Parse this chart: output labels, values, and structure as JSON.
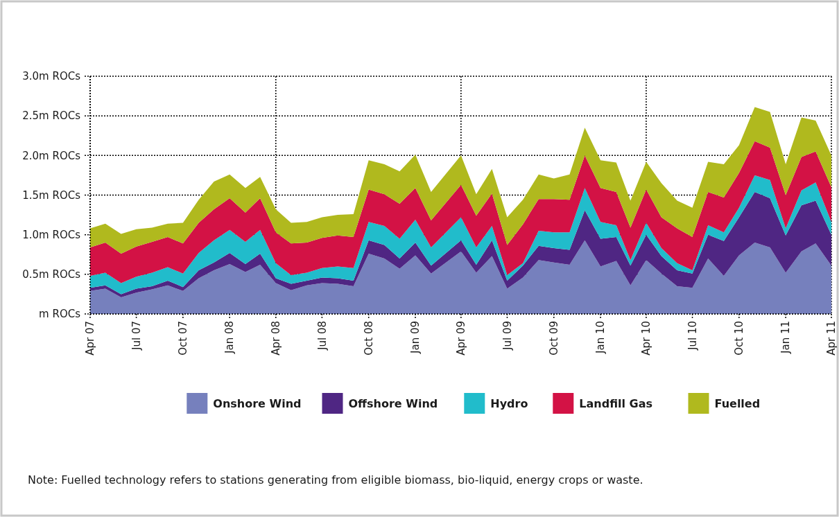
{
  "chart_data": {
    "type": "area",
    "stacked": true,
    "x": [
      "2007-04",
      "2007-05",
      "2007-06",
      "2007-07",
      "2007-08",
      "2007-09",
      "2007-10",
      "2007-11",
      "2007-12",
      "2008-01",
      "2008-02",
      "2008-03",
      "2008-04",
      "2008-05",
      "2008-06",
      "2008-07",
      "2008-08",
      "2008-09",
      "2008-10",
      "2008-11",
      "2008-12",
      "2009-01",
      "2009-02",
      "2009-04",
      "2009-05",
      "2009-06",
      "2009-07",
      "2009-08",
      "2009-09",
      "2009-10",
      "2009-11",
      "2009-12",
      "2010-01",
      "2010-02",
      "2010-03",
      "2010-04",
      "2010-05",
      "2010-06",
      "2010-07",
      "2010-08",
      "2010-09",
      "2010-10",
      "2010-11",
      "2010-12",
      "2011-01",
      "2011-02",
      "2011-03",
      "2011-04"
    ],
    "series": [
      {
        "name": "Onshore Wind",
        "color": "#7680bd",
        "values": [
          0.29,
          0.32,
          0.21,
          0.27,
          0.31,
          0.36,
          0.29,
          0.45,
          0.55,
          0.63,
          0.53,
          0.62,
          0.39,
          0.3,
          0.36,
          0.39,
          0.38,
          0.35,
          0.76,
          0.7,
          0.57,
          0.74,
          0.51,
          0.79,
          0.52,
          0.73,
          0.32,
          0.46,
          0.68,
          0.65,
          0.62,
          0.93,
          0.6,
          0.67,
          0.36,
          0.68,
          0.51,
          0.35,
          0.33,
          0.7,
          0.48,
          0.74,
          0.9,
          0.84,
          0.52,
          0.79,
          0.89,
          0.61
        ]
      },
      {
        "name": "Offshore Wind",
        "color": "#4f2683",
        "values": [
          0.04,
          0.04,
          0.04,
          0.05,
          0.04,
          0.06,
          0.05,
          0.1,
          0.1,
          0.14,
          0.1,
          0.14,
          0.06,
          0.08,
          0.06,
          0.07,
          0.07,
          0.07,
          0.17,
          0.17,
          0.13,
          0.16,
          0.1,
          0.14,
          0.1,
          0.2,
          0.1,
          0.15,
          0.18,
          0.18,
          0.19,
          0.38,
          0.35,
          0.3,
          0.25,
          0.32,
          0.22,
          0.2,
          0.18,
          0.3,
          0.44,
          0.48,
          0.64,
          0.62,
          0.47,
          0.58,
          0.54,
          0.39
        ]
      },
      {
        "name": "Hydro",
        "color": "#21bccb",
        "values": [
          0.15,
          0.16,
          0.14,
          0.15,
          0.17,
          0.17,
          0.17,
          0.22,
          0.28,
          0.29,
          0.28,
          0.3,
          0.19,
          0.11,
          0.1,
          0.12,
          0.15,
          0.16,
          0.23,
          0.24,
          0.25,
          0.29,
          0.23,
          0.29,
          0.22,
          0.18,
          0.07,
          0.03,
          0.19,
          0.2,
          0.22,
          0.28,
          0.21,
          0.15,
          0.07,
          0.15,
          0.1,
          0.09,
          0.04,
          0.12,
          0.11,
          0.12,
          0.21,
          0.23,
          0.09,
          0.19,
          0.23,
          0.16
        ]
      },
      {
        "name": "Landfill Gas",
        "color": "#d31245",
        "values": [
          0.36,
          0.38,
          0.37,
          0.38,
          0.39,
          0.38,
          0.38,
          0.38,
          0.39,
          0.4,
          0.37,
          0.4,
          0.39,
          0.4,
          0.38,
          0.38,
          0.39,
          0.39,
          0.41,
          0.4,
          0.44,
          0.4,
          0.34,
          0.41,
          0.4,
          0.41,
          0.38,
          0.49,
          0.4,
          0.42,
          0.41,
          0.41,
          0.43,
          0.42,
          0.41,
          0.42,
          0.39,
          0.44,
          0.42,
          0.42,
          0.44,
          0.44,
          0.43,
          0.41,
          0.42,
          0.42,
          0.39,
          0.44
        ]
      },
      {
        "name": "Fuelled",
        "color": "#b0b91e",
        "values": [
          0.24,
          0.24,
          0.25,
          0.22,
          0.18,
          0.17,
          0.26,
          0.29,
          0.35,
          0.3,
          0.31,
          0.27,
          0.29,
          0.26,
          0.26,
          0.26,
          0.26,
          0.29,
          0.37,
          0.38,
          0.41,
          0.42,
          0.36,
          0.37,
          0.27,
          0.31,
          0.35,
          0.31,
          0.31,
          0.26,
          0.32,
          0.35,
          0.35,
          0.37,
          0.34,
          0.35,
          0.43,
          0.35,
          0.37,
          0.38,
          0.42,
          0.35,
          0.43,
          0.45,
          0.39,
          0.5,
          0.39,
          0.4
        ]
      }
    ],
    "xlim": [
      "2007-04",
      "2011-04"
    ],
    "xticks": [
      {
        "value": "2007-04",
        "label": "Apr 07"
      },
      {
        "value": "2007-07",
        "label": "Jul 07"
      },
      {
        "value": "2007-10",
        "label": "Oct 07"
      },
      {
        "value": "2008-01",
        "label": "Jan 08"
      },
      {
        "value": "2008-04",
        "label": "Apr 08"
      },
      {
        "value": "2008-07",
        "label": "Jul 08"
      },
      {
        "value": "2008-10",
        "label": "Oct 08"
      },
      {
        "value": "2009-01",
        "label": "Jan 09"
      },
      {
        "value": "2009-04",
        "label": "Apr 09"
      },
      {
        "value": "2009-07",
        "label": "Jul 09"
      },
      {
        "value": "2009-10",
        "label": "Oct 09"
      },
      {
        "value": "2010-01",
        "label": "Jan 10"
      },
      {
        "value": "2010-04",
        "label": "Apr 10"
      },
      {
        "value": "2010-07",
        "label": "Jul 10"
      },
      {
        "value": "2010-10",
        "label": "Oct 10"
      },
      {
        "value": "2011-01",
        "label": "Jan 11"
      },
      {
        "value": "2011-04",
        "label": "Apr 11"
      }
    ],
    "ylim": [
      0,
      3
    ],
    "yticks": [
      {
        "value": 0,
        "label": "m ROCs"
      },
      {
        "value": 0.5,
        "label": "0.5m ROCs"
      },
      {
        "value": 1,
        "label": "1.0m ROCs"
      },
      {
        "value": 1.5,
        "label": "1.5m ROCs"
      },
      {
        "value": 2,
        "label": "2.0m ROCs"
      },
      {
        "value": 2.5,
        "label": "2.5m ROCs"
      },
      {
        "value": 3,
        "label": "3.0m ROCs"
      }
    ],
    "grid": true,
    "legend": "bottom",
    "annotations": [
      "Note: Fuelled technology refers to stations generating from eligible biomass, bio-liquid, energy crops or waste."
    ]
  }
}
